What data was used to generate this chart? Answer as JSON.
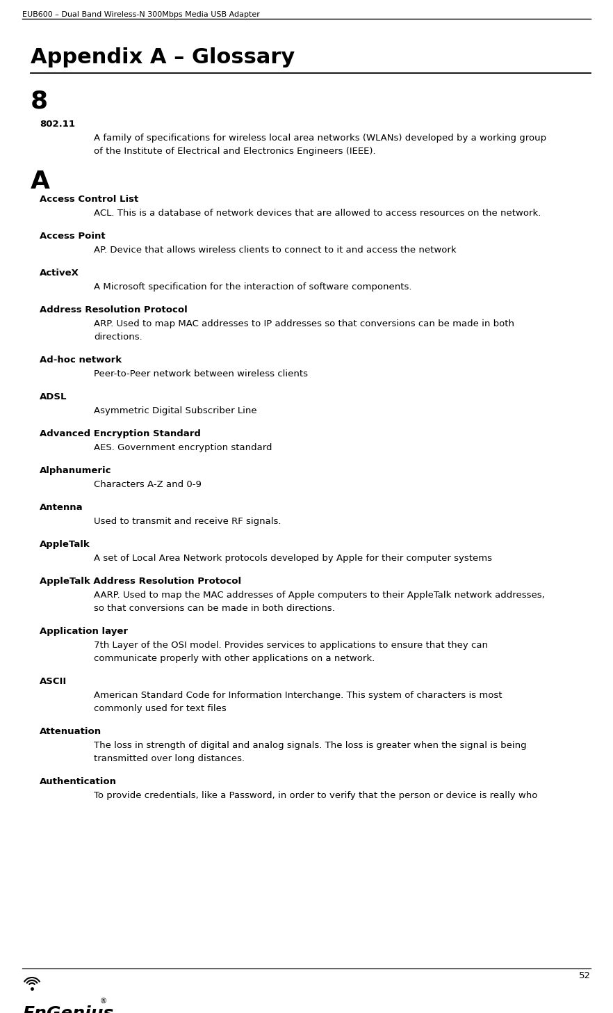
{
  "header_text": "EUB600 – Dual Band Wireless-N 300Mbps Media USB Adapter",
  "title": "Appendix A – Glossary",
  "page_number": "52",
  "background_color": "#ffffff",
  "text_color": "#000000",
  "section_8_header": "8",
  "section_a_header": "A",
  "entries_802": [
    {
      "term": "802.11",
      "lines": [
        "A family of specifications for wireless local area networks (WLANs) developed by a working group",
        "of the Institute of Electrical and Electronics Engineers (IEEE)."
      ]
    }
  ],
  "entries_a": [
    {
      "term": "Access Control List",
      "lines": [
        "ACL. This is a database of network devices that are allowed to access resources on the network."
      ]
    },
    {
      "term": "Access Point",
      "lines": [
        "AP. Device that allows wireless clients to connect to it and access the network"
      ]
    },
    {
      "term": "ActiveX",
      "lines": [
        "A Microsoft specification for the interaction of software components."
      ]
    },
    {
      "term": "Address Resolution Protocol",
      "lines": [
        "ARP. Used to map MAC addresses to IP addresses so that conversions can be made in both",
        "directions."
      ]
    },
    {
      "term": "Ad-hoc network",
      "lines": [
        "Peer-to-Peer network between wireless clients"
      ]
    },
    {
      "term": "ADSL",
      "lines": [
        "Asymmetric Digital Subscriber Line"
      ]
    },
    {
      "term": "Advanced Encryption Standard",
      "lines": [
        "AES. Government encryption standard"
      ]
    },
    {
      "term": "Alphanumeric",
      "lines": [
        "Characters A-Z and 0-9"
      ]
    },
    {
      "term": "Antenna",
      "lines": [
        "Used to transmit and receive RF signals."
      ]
    },
    {
      "term": "AppleTalk",
      "lines": [
        "A set of Local Area Network protocols developed by Apple for their computer systems"
      ]
    },
    {
      "term": "AppleTalk Address Resolution Protocol",
      "lines": [
        "AARP. Used to map the MAC addresses of Apple computers to their AppleTalk network addresses,",
        "so that conversions can be made in both directions."
      ]
    },
    {
      "term": "Application layer",
      "lines": [
        "7th Layer of the OSI model. Provides services to applications to ensure that they can",
        "communicate properly with other applications on a network."
      ]
    },
    {
      "term": "ASCII",
      "lines": [
        "American Standard Code for Information Interchange. This system of characters is most",
        "commonly used for text files"
      ]
    },
    {
      "term": "Attenuation",
      "lines": [
        "The loss in strength of digital and analog signals. The loss is greater when the signal is being",
        "transmitted over long distances."
      ]
    },
    {
      "term": "Authentication",
      "lines": [
        "To provide credentials, like a Password, in order to verify that the person or device is really who"
      ]
    }
  ],
  "header_font_size": 8.0,
  "title_font_size": 22,
  "section_header_font_size": 26,
  "term_font_size": 9.5,
  "def_font_size": 9.5,
  "page_num_font_size": 9.5,
  "logo_font_size": 18
}
